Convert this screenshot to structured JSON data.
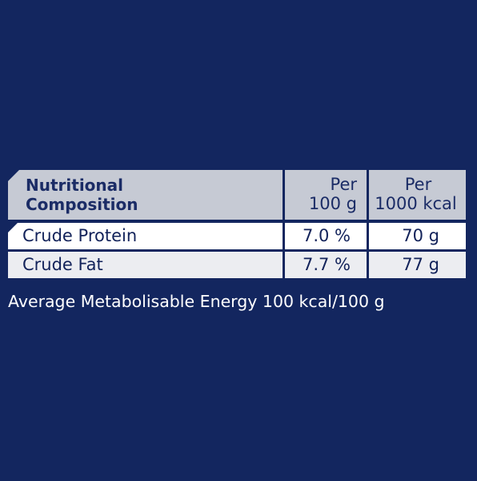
{
  "table": {
    "header": {
      "composition_line1": "Nutritional",
      "composition_line2": "Composition",
      "per100g_line1": "Per",
      "per100g_line2": "100 g",
      "per1000kcal_line1": "Per",
      "per1000kcal_line2": "1000 kcal"
    },
    "rows": [
      {
        "name": "Crude Protein",
        "per100g": "7.0 %",
        "per1000kcal": "70 g"
      },
      {
        "name": "Crude Fat",
        "per100g": "7.7 %",
        "per1000kcal": "77 g"
      }
    ]
  },
  "footnote": "Average Metabolisable Energy 100 kcal/100 g",
  "colors": {
    "background": "#13265f",
    "header_cell": "#c6cad4",
    "row_white": "#ffffff",
    "row_grey": "#ecedf1",
    "text_dark": "#1b2c66"
  }
}
